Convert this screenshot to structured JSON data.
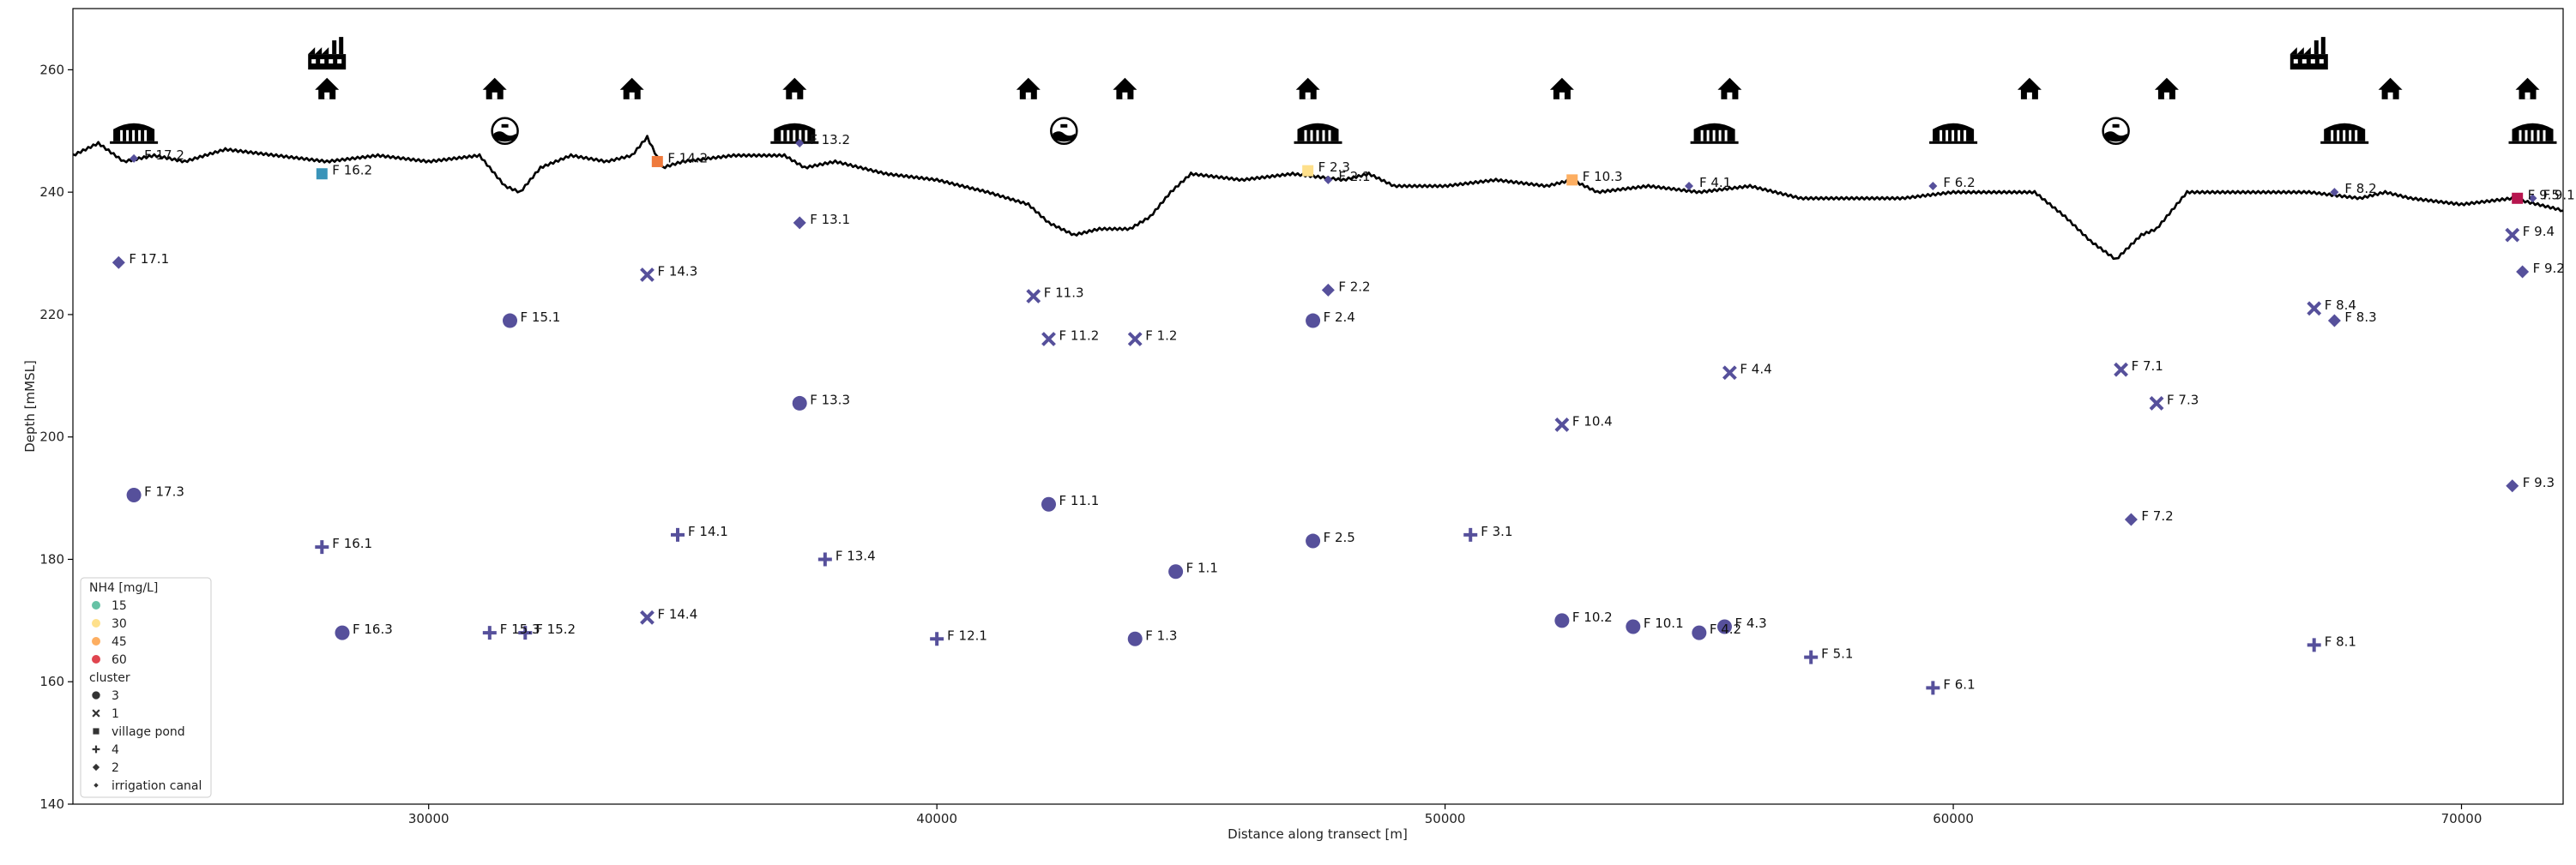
{
  "chart_data": {
    "type": "scatter",
    "xlabel": "Distance along transect [m]",
    "ylabel": "Depth [mMSL]",
    "xlim": [
      23000,
      72000
    ],
    "ylim": [
      140,
      270
    ],
    "xticks": [
      30000,
      40000,
      50000,
      60000,
      70000
    ],
    "yticks": [
      140,
      160,
      180,
      200,
      220,
      240,
      260
    ],
    "grid": false,
    "legend": {
      "placement": "bottom-left",
      "hue_title": "NH4 [mg/L]",
      "hue_levels": [
        {
          "label": "15",
          "color": "#66c2a5"
        },
        {
          "label": "30",
          "color": "#fee08b"
        },
        {
          "label": "45",
          "color": "#fdae61"
        },
        {
          "label": "60",
          "color": "#e0454f"
        }
      ],
      "style_title": "cluster",
      "style_levels": [
        {
          "label": "3",
          "marker": "circle"
        },
        {
          "label": "1",
          "marker": "x"
        },
        {
          "label": "village pond",
          "marker": "square"
        },
        {
          "label": "4",
          "marker": "plus"
        },
        {
          "label": "2",
          "marker": "diamond"
        },
        {
          "label": "irrigation canal",
          "marker": "small-diamond"
        }
      ]
    },
    "default_color": "#56509b",
    "surface_profile": [
      [
        23000,
        246
      ],
      [
        23500,
        248
      ],
      [
        24000,
        245
      ],
      [
        24600,
        246
      ],
      [
        25200,
        245
      ],
      [
        26000,
        247
      ],
      [
        27000,
        246
      ],
      [
        28000,
        245
      ],
      [
        29000,
        246
      ],
      [
        30000,
        245
      ],
      [
        31000,
        246
      ],
      [
        31500,
        241
      ],
      [
        31800,
        240
      ],
      [
        32200,
        244
      ],
      [
        32800,
        246
      ],
      [
        33500,
        245
      ],
      [
        34000,
        246
      ],
      [
        34300,
        249
      ],
      [
        34600,
        244
      ],
      [
        35000,
        245
      ],
      [
        36000,
        246
      ],
      [
        37000,
        246
      ],
      [
        37400,
        244
      ],
      [
        38000,
        245
      ],
      [
        39000,
        243
      ],
      [
        40000,
        242
      ],
      [
        41000,
        240
      ],
      [
        41800,
        238
      ],
      [
        42200,
        235
      ],
      [
        42700,
        233
      ],
      [
        43200,
        234
      ],
      [
        43800,
        234
      ],
      [
        44200,
        236
      ],
      [
        44600,
        240
      ],
      [
        45000,
        243
      ],
      [
        46000,
        242
      ],
      [
        47000,
        243
      ],
      [
        48000,
        242
      ],
      [
        48500,
        243
      ],
      [
        49000,
        241
      ],
      [
        50000,
        241
      ],
      [
        51000,
        242
      ],
      [
        52000,
        241
      ],
      [
        52500,
        242
      ],
      [
        53000,
        240
      ],
      [
        54000,
        241
      ],
      [
        55000,
        240
      ],
      [
        56000,
        241
      ],
      [
        57000,
        239
      ],
      [
        58000,
        239
      ],
      [
        59000,
        239
      ],
      [
        60000,
        240
      ],
      [
        61000,
        240
      ],
      [
        61600,
        240
      ],
      [
        62200,
        236
      ],
      [
        62700,
        232
      ],
      [
        63200,
        229
      ],
      [
        63700,
        233
      ],
      [
        64000,
        234
      ],
      [
        64300,
        237
      ],
      [
        64600,
        240
      ],
      [
        65200,
        240
      ],
      [
        66000,
        240
      ],
      [
        67000,
        240
      ],
      [
        68000,
        239
      ],
      [
        68500,
        240
      ],
      [
        69000,
        239
      ],
      [
        70000,
        238
      ],
      [
        71000,
        239
      ],
      [
        71500,
        238
      ],
      [
        72000,
        237
      ]
    ],
    "icons": [
      {
        "type": "factory",
        "x": 28000,
        "y": 262
      },
      {
        "type": "factory",
        "x": 67000,
        "y": 262
      },
      {
        "type": "house",
        "x": 28000,
        "y": 257
      },
      {
        "type": "house",
        "x": 31300,
        "y": 257
      },
      {
        "type": "house",
        "x": 34000,
        "y": 257
      },
      {
        "type": "house",
        "x": 37200,
        "y": 257
      },
      {
        "type": "house",
        "x": 41800,
        "y": 257
      },
      {
        "type": "house",
        "x": 43700,
        "y": 257
      },
      {
        "type": "house",
        "x": 47300,
        "y": 257
      },
      {
        "type": "house",
        "x": 52300,
        "y": 257
      },
      {
        "type": "house",
        "x": 55600,
        "y": 257
      },
      {
        "type": "house",
        "x": 61500,
        "y": 257
      },
      {
        "type": "house",
        "x": 64200,
        "y": 257
      },
      {
        "type": "house",
        "x": 68600,
        "y": 257
      },
      {
        "type": "house",
        "x": 71300,
        "y": 257
      },
      {
        "type": "storage",
        "x": 24200,
        "y": 250
      },
      {
        "type": "storage",
        "x": 37200,
        "y": 250
      },
      {
        "type": "storage",
        "x": 47500,
        "y": 250
      },
      {
        "type": "storage",
        "x": 55300,
        "y": 250
      },
      {
        "type": "storage",
        "x": 60000,
        "y": 250
      },
      {
        "type": "storage",
        "x": 67700,
        "y": 250
      },
      {
        "type": "storage",
        "x": 71400,
        "y": 250
      },
      {
        "type": "pond-sign",
        "x": 31500,
        "y": 250
      },
      {
        "type": "pond-sign",
        "x": 42500,
        "y": 250
      },
      {
        "type": "pond-sign",
        "x": 63200,
        "y": 250
      }
    ],
    "points": [
      {
        "label": "F 17.2",
        "x": 24200,
        "y": 245.5,
        "marker": "small-diamond",
        "color": "#56509b"
      },
      {
        "label": "F 17.1",
        "x": 23900,
        "y": 228.5,
        "marker": "diamond",
        "color": "#56509b"
      },
      {
        "label": "F 17.3",
        "x": 24200,
        "y": 190.5,
        "marker": "circle",
        "color": "#56509b"
      },
      {
        "label": "F 16.2",
        "x": 27900,
        "y": 243,
        "marker": "square",
        "color": "#3a94b9"
      },
      {
        "label": "F 16.1",
        "x": 27900,
        "y": 182,
        "marker": "plus",
        "color": "#56509b"
      },
      {
        "label": "F 16.3",
        "x": 28300,
        "y": 168,
        "marker": "circle",
        "color": "#56509b"
      },
      {
        "label": "F 15.1",
        "x": 31600,
        "y": 219,
        "marker": "circle",
        "color": "#56509b"
      },
      {
        "label": "F 15.3",
        "x": 31200,
        "y": 168,
        "marker": "plus",
        "color": "#56509b"
      },
      {
        "label": "F 15.2",
        "x": 31900,
        "y": 168,
        "marker": "plus",
        "color": "#56509b"
      },
      {
        "label": "F 14.2",
        "x": 34500,
        "y": 245,
        "marker": "square",
        "color": "#ef7a3c"
      },
      {
        "label": "F 14.3",
        "x": 34300,
        "y": 226.5,
        "marker": "x",
        "color": "#56509b"
      },
      {
        "label": "F 14.1",
        "x": 34900,
        "y": 184,
        "marker": "plus",
        "color": "#56509b"
      },
      {
        "label": "F 14.4",
        "x": 34300,
        "y": 170.5,
        "marker": "x",
        "color": "#56509b"
      },
      {
        "label": "F 13.2",
        "x": 37300,
        "y": 248,
        "marker": "small-diamond",
        "color": "#56509b"
      },
      {
        "label": "F 13.1",
        "x": 37300,
        "y": 235,
        "marker": "diamond",
        "color": "#56509b"
      },
      {
        "label": "F 13.3",
        "x": 37300,
        "y": 205.5,
        "marker": "circle",
        "color": "#56509b"
      },
      {
        "label": "F 13.4",
        "x": 37800,
        "y": 180,
        "marker": "plus",
        "color": "#56509b"
      },
      {
        "label": "F 12.1",
        "x": 40000,
        "y": 167,
        "marker": "plus",
        "color": "#56509b"
      },
      {
        "label": "F 11.3",
        "x": 41900,
        "y": 223,
        "marker": "x",
        "color": "#56509b"
      },
      {
        "label": "F 11.2",
        "x": 42200,
        "y": 216,
        "marker": "x",
        "color": "#56509b"
      },
      {
        "label": "F 11.1",
        "x": 42200,
        "y": 189,
        "marker": "circle",
        "color": "#56509b"
      },
      {
        "label": "F 1.2",
        "x": 43900,
        "y": 216,
        "marker": "x",
        "color": "#56509b"
      },
      {
        "label": "F 1.1",
        "x": 44700,
        "y": 178,
        "marker": "circle",
        "color": "#56509b"
      },
      {
        "label": "F 1.3",
        "x": 43900,
        "y": 167,
        "marker": "circle",
        "color": "#56509b"
      },
      {
        "label": "F 2.3",
        "x": 47300,
        "y": 243.5,
        "marker": "square",
        "color": "#fee08b"
      },
      {
        "label": "F 2.1",
        "x": 47700,
        "y": 242,
        "marker": "small-diamond",
        "color": "#56509b"
      },
      {
        "label": "F 2.2",
        "x": 47700,
        "y": 224,
        "marker": "diamond",
        "color": "#56509b"
      },
      {
        "label": "F 2.4",
        "x": 47400,
        "y": 219,
        "marker": "circle",
        "color": "#56509b"
      },
      {
        "label": "F 2.5",
        "x": 47400,
        "y": 183,
        "marker": "circle",
        "color": "#56509b"
      },
      {
        "label": "F 3.1",
        "x": 50500,
        "y": 184,
        "marker": "plus",
        "color": "#56509b"
      },
      {
        "label": "F 10.3",
        "x": 52500,
        "y": 242,
        "marker": "square",
        "color": "#fdae61"
      },
      {
        "label": "F 10.4",
        "x": 52300,
        "y": 202,
        "marker": "x",
        "color": "#56509b"
      },
      {
        "label": "F 10.2",
        "x": 52300,
        "y": 170,
        "marker": "circle",
        "color": "#56509b"
      },
      {
        "label": "F 10.1",
        "x": 53700,
        "y": 169,
        "marker": "circle",
        "color": "#56509b"
      },
      {
        "label": "F 4.1",
        "x": 54800,
        "y": 241,
        "marker": "small-diamond",
        "color": "#56509b"
      },
      {
        "label": "F 4.4",
        "x": 55600,
        "y": 210.5,
        "marker": "x",
        "color": "#56509b"
      },
      {
        "label": "F 4.2",
        "x": 55000,
        "y": 168,
        "marker": "circle",
        "color": "#56509b"
      },
      {
        "label": "F 4.3",
        "x": 55500,
        "y": 169,
        "marker": "circle",
        "color": "#56509b"
      },
      {
        "label": "F 5.1",
        "x": 57200,
        "y": 164,
        "marker": "plus",
        "color": "#56509b"
      },
      {
        "label": "F 6.2",
        "x": 59600,
        "y": 241,
        "marker": "small-diamond",
        "color": "#56509b"
      },
      {
        "label": "F 6.1",
        "x": 59600,
        "y": 159,
        "marker": "plus",
        "color": "#56509b"
      },
      {
        "label": "F 7.1",
        "x": 63300,
        "y": 211,
        "marker": "x",
        "color": "#56509b"
      },
      {
        "label": "F 7.3",
        "x": 64000,
        "y": 205.5,
        "marker": "x",
        "color": "#56509b"
      },
      {
        "label": "F 7.2",
        "x": 63500,
        "y": 186.5,
        "marker": "diamond",
        "color": "#56509b"
      },
      {
        "label": "F 8.2",
        "x": 67500,
        "y": 240,
        "marker": "small-diamond",
        "color": "#56509b"
      },
      {
        "label": "F 8.4",
        "x": 67100,
        "y": 221,
        "marker": "x",
        "color": "#56509b"
      },
      {
        "label": "F 8.3",
        "x": 67500,
        "y": 219,
        "marker": "diamond",
        "color": "#56509b"
      },
      {
        "label": "F 8.1",
        "x": 67100,
        "y": 166,
        "marker": "plus",
        "color": "#56509b"
      },
      {
        "label": "F 9.5",
        "x": 71100,
        "y": 239,
        "marker": "square",
        "color": "#b7164f"
      },
      {
        "label": "F 9.1",
        "x": 71400,
        "y": 239,
        "marker": "small-diamond",
        "color": "#56509b"
      },
      {
        "label": "F 9.4",
        "x": 71000,
        "y": 233,
        "marker": "x",
        "color": "#56509b"
      },
      {
        "label": "F 9.2",
        "x": 71200,
        "y": 227,
        "marker": "diamond",
        "color": "#56509b"
      },
      {
        "label": "F 9.3",
        "x": 71000,
        "y": 192,
        "marker": "diamond",
        "color": "#56509b"
      }
    ]
  }
}
